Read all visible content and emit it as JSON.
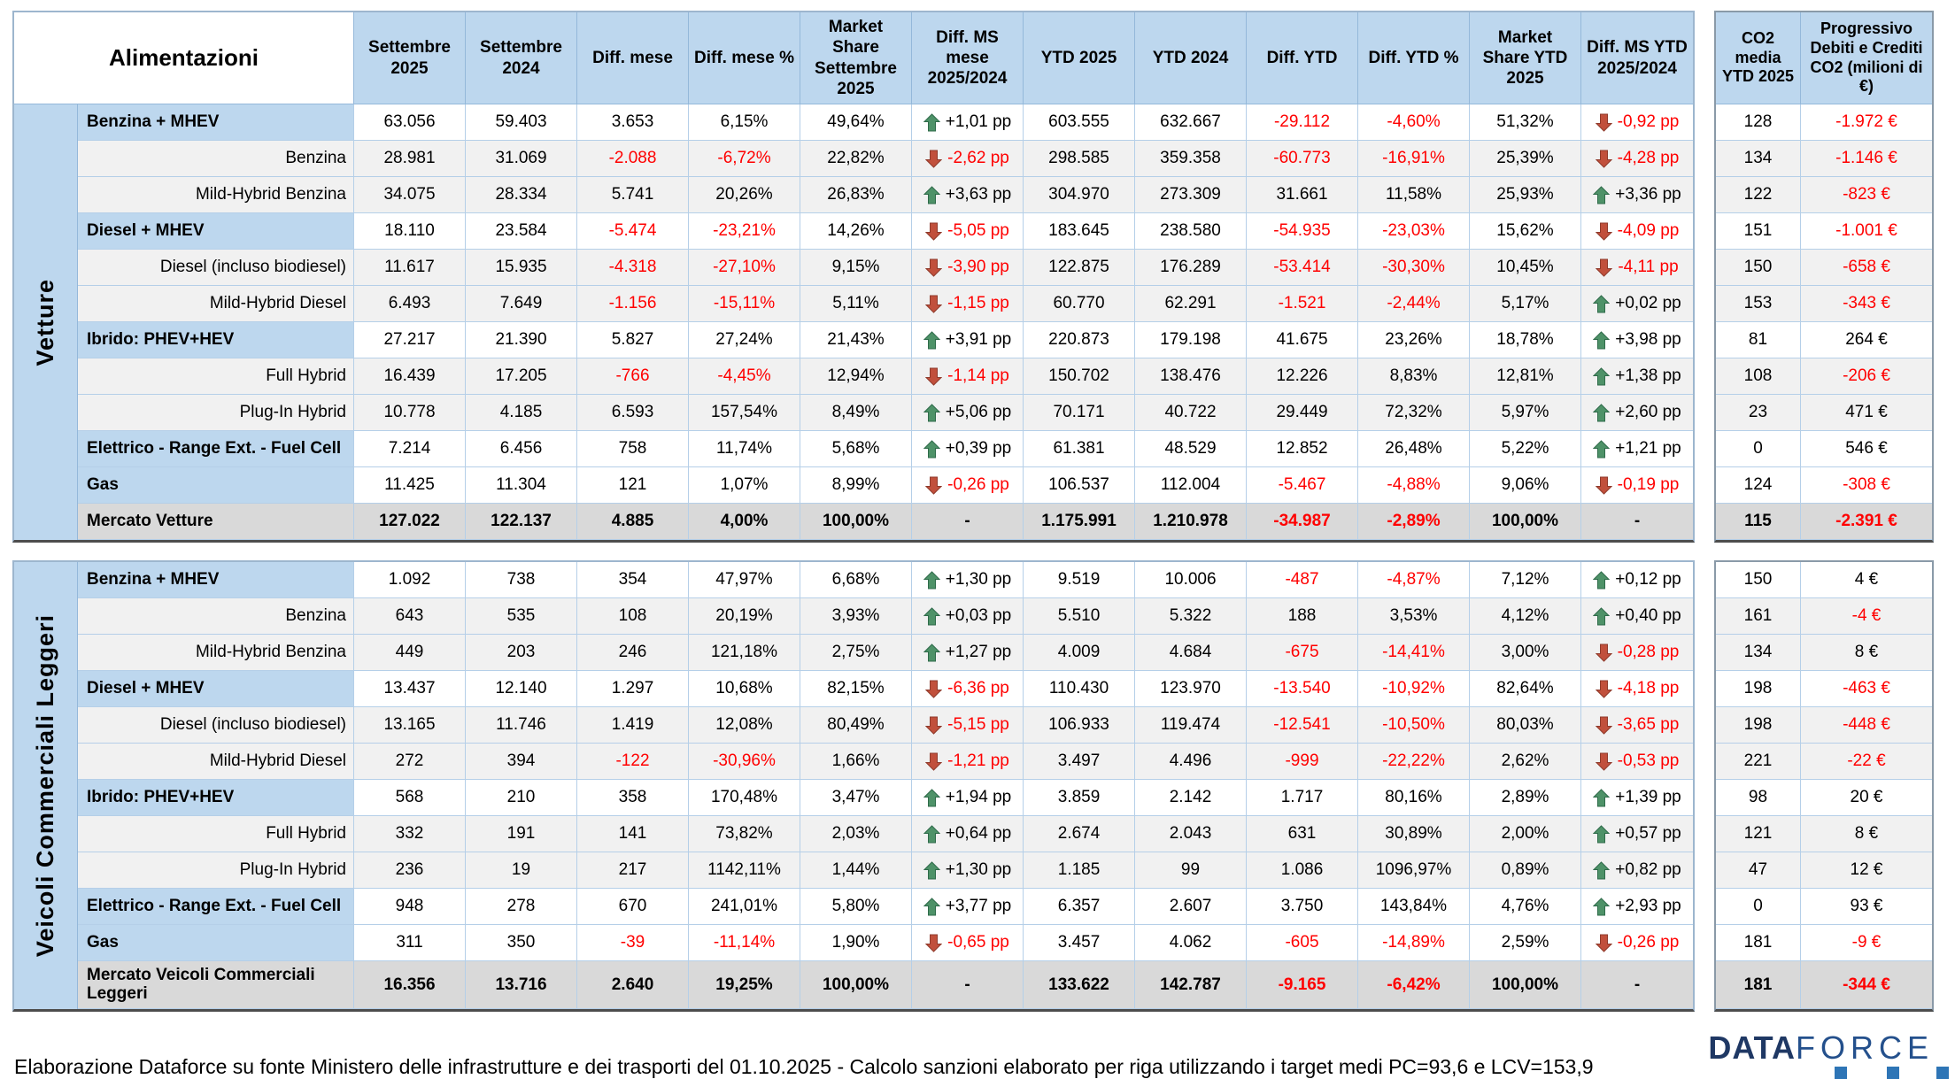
{
  "header": {
    "row_label": "Alimentazioni",
    "columns": [
      "Settembre 2025",
      "Settembre 2024",
      "Diff. mese",
      "Diff. mese %",
      "Market Share Settembre 2025",
      "Diff. MS mese 2025/2024",
      "YTD 2025",
      "YTD 2024",
      "Diff. YTD",
      "Diff. YTD %",
      "Market Share YTD 2025",
      "Diff. MS YTD 2025/2024"
    ],
    "co2_columns": [
      "CO2 media YTD 2025",
      "Progressivo Debiti e Crediti CO2 (milioni di €)"
    ]
  },
  "sections": [
    {
      "name": "Vetture",
      "has_header": true,
      "rows": [
        {
          "label": "Benzina + MHEV",
          "type": "main",
          "cells": [
            "63.056",
            "59.403",
            "3.653",
            "6,15%",
            "49,64%",
            "+1,01 pp",
            "603.555",
            "632.667",
            "-29.112",
            "-4,60%",
            "51,32%",
            "-0,92 pp"
          ],
          "co2": [
            "128",
            "-1.972 €"
          ]
        },
        {
          "label": "Benzina",
          "type": "sub",
          "cells": [
            "28.981",
            "31.069",
            "-2.088",
            "-6,72%",
            "22,82%",
            "-2,62 pp",
            "298.585",
            "359.358",
            "-60.773",
            "-16,91%",
            "25,39%",
            "-4,28 pp"
          ],
          "co2": [
            "134",
            "-1.146 €"
          ]
        },
        {
          "label": "Mild-Hybrid Benzina",
          "type": "sub",
          "cells": [
            "34.075",
            "28.334",
            "5.741",
            "20,26%",
            "26,83%",
            "+3,63 pp",
            "304.970",
            "273.309",
            "31.661",
            "11,58%",
            "25,93%",
            "+3,36 pp"
          ],
          "co2": [
            "122",
            "-823 €"
          ]
        },
        {
          "label": "Diesel + MHEV",
          "type": "main",
          "cells": [
            "18.110",
            "23.584",
            "-5.474",
            "-23,21%",
            "14,26%",
            "-5,05 pp",
            "183.645",
            "238.580",
            "-54.935",
            "-23,03%",
            "15,62%",
            "-4,09 pp"
          ],
          "co2": [
            "151",
            "-1.001 €"
          ]
        },
        {
          "label": "Diesel (incluso biodiesel)",
          "type": "sub",
          "cells": [
            "11.617",
            "15.935",
            "-4.318",
            "-27,10%",
            "9,15%",
            "-3,90 pp",
            "122.875",
            "176.289",
            "-53.414",
            "-30,30%",
            "10,45%",
            "-4,11 pp"
          ],
          "co2": [
            "150",
            "-658 €"
          ]
        },
        {
          "label": "Mild-Hybrid Diesel",
          "type": "sub",
          "cells": [
            "6.493",
            "7.649",
            "-1.156",
            "-15,11%",
            "5,11%",
            "-1,15 pp",
            "60.770",
            "62.291",
            "-1.521",
            "-2,44%",
            "5,17%",
            "+0,02 pp"
          ],
          "co2": [
            "153",
            "-343 €"
          ]
        },
        {
          "label": "Ibrido: PHEV+HEV",
          "type": "main",
          "cells": [
            "27.217",
            "21.390",
            "5.827",
            "27,24%",
            "21,43%",
            "+3,91 pp",
            "220.873",
            "179.198",
            "41.675",
            "23,26%",
            "18,78%",
            "+3,98 pp"
          ],
          "co2": [
            "81",
            "264 €"
          ]
        },
        {
          "label": "Full Hybrid",
          "type": "sub",
          "cells": [
            "16.439",
            "17.205",
            "-766",
            "-4,45%",
            "12,94%",
            "-1,14 pp",
            "150.702",
            "138.476",
            "12.226",
            "8,83%",
            "12,81%",
            "+1,38 pp"
          ],
          "co2": [
            "108",
            "-206 €"
          ]
        },
        {
          "label": "Plug-In Hybrid",
          "type": "sub",
          "cells": [
            "10.778",
            "4.185",
            "6.593",
            "157,54%",
            "8,49%",
            "+5,06 pp",
            "70.171",
            "40.722",
            "29.449",
            "72,32%",
            "5,97%",
            "+2,60 pp"
          ],
          "co2": [
            "23",
            "471 €"
          ]
        },
        {
          "label": "Elettrico - Range Ext. - Fuel Cell",
          "type": "main",
          "cells": [
            "7.214",
            "6.456",
            "758",
            "11,74%",
            "5,68%",
            "+0,39 pp",
            "61.381",
            "48.529",
            "12.852",
            "26,48%",
            "5,22%",
            "+1,21 pp"
          ],
          "co2": [
            "0",
            "546 €"
          ]
        },
        {
          "label": "Gas",
          "type": "main",
          "cells": [
            "11.425",
            "11.304",
            "121",
            "1,07%",
            "8,99%",
            "-0,26 pp",
            "106.537",
            "112.004",
            "-5.467",
            "-4,88%",
            "9,06%",
            "-0,19 pp"
          ],
          "co2": [
            "124",
            "-308 €"
          ]
        },
        {
          "label": "Mercato Vetture",
          "type": "total",
          "cells": [
            "127.022",
            "122.137",
            "4.885",
            "4,00%",
            "100,00%",
            "-",
            "1.175.991",
            "1.210.978",
            "-34.987",
            "-2,89%",
            "100,00%",
            "-"
          ],
          "co2": [
            "115",
            "-2.391 €"
          ]
        }
      ]
    },
    {
      "name": "Veicoli Commerciali Leggeri",
      "has_header": false,
      "rows": [
        {
          "label": "Benzina + MHEV",
          "type": "main",
          "cells": [
            "1.092",
            "738",
            "354",
            "47,97%",
            "6,68%",
            "+1,30 pp",
            "9.519",
            "10.006",
            "-487",
            "-4,87%",
            "7,12%",
            "+0,12 pp"
          ],
          "co2": [
            "150",
            "4 €"
          ]
        },
        {
          "label": "Benzina",
          "type": "sub",
          "cells": [
            "643",
            "535",
            "108",
            "20,19%",
            "3,93%",
            "+0,03 pp",
            "5.510",
            "5.322",
            "188",
            "3,53%",
            "4,12%",
            "+0,40 pp"
          ],
          "co2": [
            "161",
            "-4 €"
          ]
        },
        {
          "label": "Mild-Hybrid Benzina",
          "type": "sub",
          "cells": [
            "449",
            "203",
            "246",
            "121,18%",
            "2,75%",
            "+1,27 pp",
            "4.009",
            "4.684",
            "-675",
            "-14,41%",
            "3,00%",
            "-0,28 pp"
          ],
          "co2": [
            "134",
            "8 €"
          ]
        },
        {
          "label": "Diesel + MHEV",
          "type": "main",
          "cells": [
            "13.437",
            "12.140",
            "1.297",
            "10,68%",
            "82,15%",
            "-6,36 pp",
            "110.430",
            "123.970",
            "-13.540",
            "-10,92%",
            "82,64%",
            "-4,18 pp"
          ],
          "co2": [
            "198",
            "-463 €"
          ]
        },
        {
          "label": "Diesel (incluso biodiesel)",
          "type": "sub",
          "cells": [
            "13.165",
            "11.746",
            "1.419",
            "12,08%",
            "80,49%",
            "-5,15 pp",
            "106.933",
            "119.474",
            "-12.541",
            "-10,50%",
            "80,03%",
            "-3,65 pp"
          ],
          "co2": [
            "198",
            "-448 €"
          ]
        },
        {
          "label": "Mild-Hybrid Diesel",
          "type": "sub",
          "cells": [
            "272",
            "394",
            "-122",
            "-30,96%",
            "1,66%",
            "-1,21 pp",
            "3.497",
            "4.496",
            "-999",
            "-22,22%",
            "2,62%",
            "-0,53 pp"
          ],
          "co2": [
            "221",
            "-22 €"
          ]
        },
        {
          "label": "Ibrido: PHEV+HEV",
          "type": "main",
          "cells": [
            "568",
            "210",
            "358",
            "170,48%",
            "3,47%",
            "+1,94 pp",
            "3.859",
            "2.142",
            "1.717",
            "80,16%",
            "2,89%",
            "+1,39 pp"
          ],
          "co2": [
            "98",
            "20 €"
          ]
        },
        {
          "label": "Full Hybrid",
          "type": "sub",
          "cells": [
            "332",
            "191",
            "141",
            "73,82%",
            "2,03%",
            "+0,64 pp",
            "2.674",
            "2.043",
            "631",
            "30,89%",
            "2,00%",
            "+0,57 pp"
          ],
          "co2": [
            "121",
            "8 €"
          ]
        },
        {
          "label": "Plug-In Hybrid",
          "type": "sub",
          "cells": [
            "236",
            "19",
            "217",
            "1142,11%",
            "1,44%",
            "+1,30 pp",
            "1.185",
            "99",
            "1.086",
            "1096,97%",
            "0,89%",
            "+0,82 pp"
          ],
          "co2": [
            "47",
            "12 €"
          ]
        },
        {
          "label": "Elettrico - Range Ext. - Fuel Cell",
          "type": "main",
          "cells": [
            "948",
            "278",
            "670",
            "241,01%",
            "5,80%",
            "+3,77 pp",
            "6.357",
            "2.607",
            "3.750",
            "143,84%",
            "4,76%",
            "+2,93 pp"
          ],
          "co2": [
            "0",
            "93 €"
          ]
        },
        {
          "label": "Gas",
          "type": "main",
          "cells": [
            "311",
            "350",
            "-39",
            "-11,14%",
            "1,90%",
            "-0,65 pp",
            "3.457",
            "4.062",
            "-605",
            "-14,89%",
            "2,59%",
            "-0,26 pp"
          ],
          "co2": [
            "181",
            "-9 €"
          ]
        },
        {
          "label": "Mercato Veicoli Commerciali Leggeri",
          "type": "total",
          "tall": true,
          "cells": [
            "16.356",
            "13.716",
            "2.640",
            "19,25%",
            "100,00%",
            "-",
            "133.622",
            "142.787",
            "-9.165",
            "-6,42%",
            "100,00%",
            "-"
          ],
          "co2": [
            "181",
            "-344 €"
          ]
        }
      ]
    }
  ],
  "footer": {
    "note": "Elaborazione Dataforce su fonte Ministero delle infrastrutture e dei trasporti del 01.10.2025 - Calcolo sanzioni elaborato per riga utilizzando i target medi PC=93,6 e LCV=153,9"
  },
  "logo": {
    "part1": "DATA",
    "part2": "FORCE"
  },
  "colors": {
    "header_bg": "#BDD7EE",
    "main_row_bg": "#FFFFFF",
    "sub_row_bg": "#F1F1F1",
    "total_row_bg": "#D9D9D9",
    "negative_text": "#FF0000",
    "arrow_up": "#4E9268",
    "arrow_down": "#C1503C",
    "logo_navy": "#1F3864",
    "logo_blue": "#2E75B6"
  }
}
